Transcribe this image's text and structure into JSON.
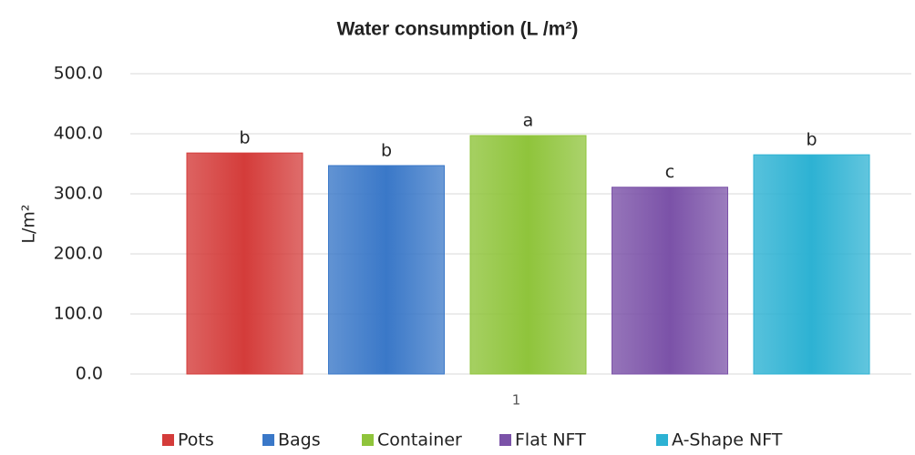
{
  "chart_data": {
    "type": "bar",
    "title": "Water consumption (L /m²)",
    "y_label": "L/m²",
    "categories": [
      "1"
    ],
    "series": [
      {
        "name": "Pots",
        "color": "#d43c3a",
        "values": [
          368
        ],
        "annotation": "b"
      },
      {
        "name": "Bags",
        "color": "#3a78c8",
        "values": [
          347
        ],
        "annotation": "b"
      },
      {
        "name": "Container",
        "color": "#8fc43b",
        "values": [
          397
        ],
        "annotation": "a"
      },
      {
        "name": "Flat NFT",
        "color": "#7b52a8",
        "values": [
          311
        ],
        "annotation": "c"
      },
      {
        "name": "A-Shape NFT",
        "color": "#2db2d3",
        "values": [
          365
        ],
        "annotation": "b"
      }
    ],
    "ylim": [
      0,
      500
    ],
    "yticks": [
      {
        "value": 0,
        "label": "0.0"
      },
      {
        "value": 100,
        "label": "100.0"
      },
      {
        "value": 200,
        "label": "200.0"
      },
      {
        "value": 300,
        "label": "300.0"
      },
      {
        "value": 400,
        "label": "400.0"
      },
      {
        "value": 500,
        "label": "500.0"
      }
    ],
    "grid": true,
    "legend": "bottom"
  }
}
